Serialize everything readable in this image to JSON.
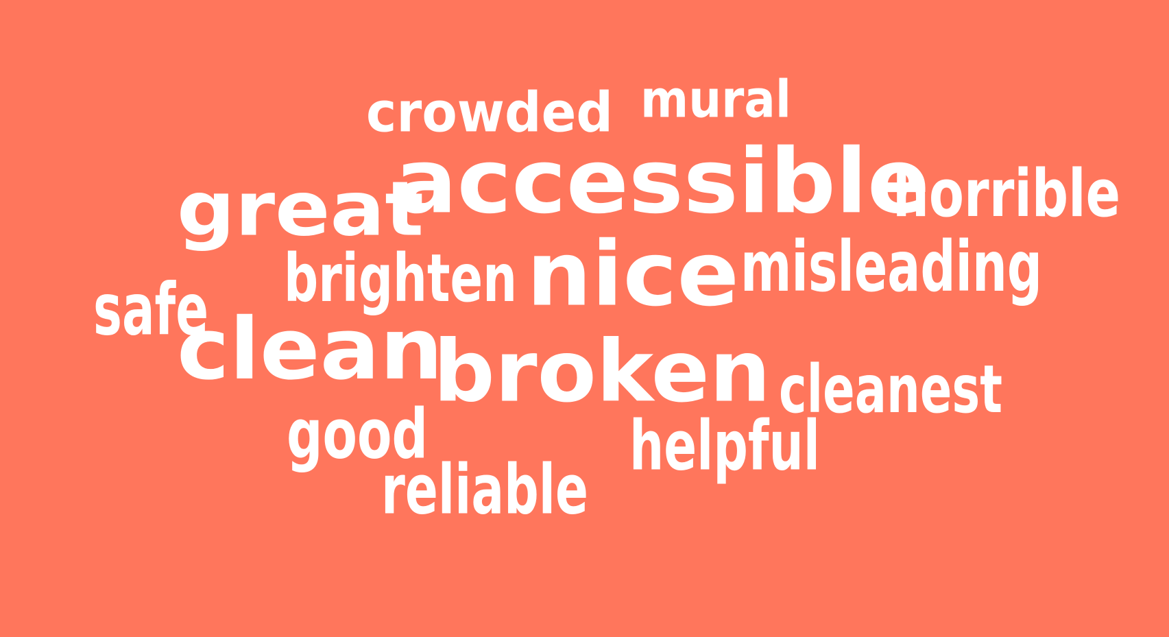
{
  "background_color": "#ff765c",
  "text_color": "#ffffff",
  "words": [
    {
      "id": "crowded",
      "text": "crowded"
    },
    {
      "id": "mural",
      "text": "mural"
    },
    {
      "id": "great",
      "text": "great"
    },
    {
      "id": "accessible",
      "text": "accessible"
    },
    {
      "id": "horrible",
      "text": "horrible"
    },
    {
      "id": "brighten",
      "text": "brighten"
    },
    {
      "id": "nice",
      "text": "nice"
    },
    {
      "id": "misleading",
      "text": "misleading"
    },
    {
      "id": "safe",
      "text": "safe"
    },
    {
      "id": "clean",
      "text": "clean"
    },
    {
      "id": "broken",
      "text": "broken"
    },
    {
      "id": "cleanest",
      "text": "cleanest"
    },
    {
      "id": "good",
      "text": "good"
    },
    {
      "id": "helpful",
      "text": "helpful"
    },
    {
      "id": "reliable",
      "text": "reliable"
    }
  ]
}
